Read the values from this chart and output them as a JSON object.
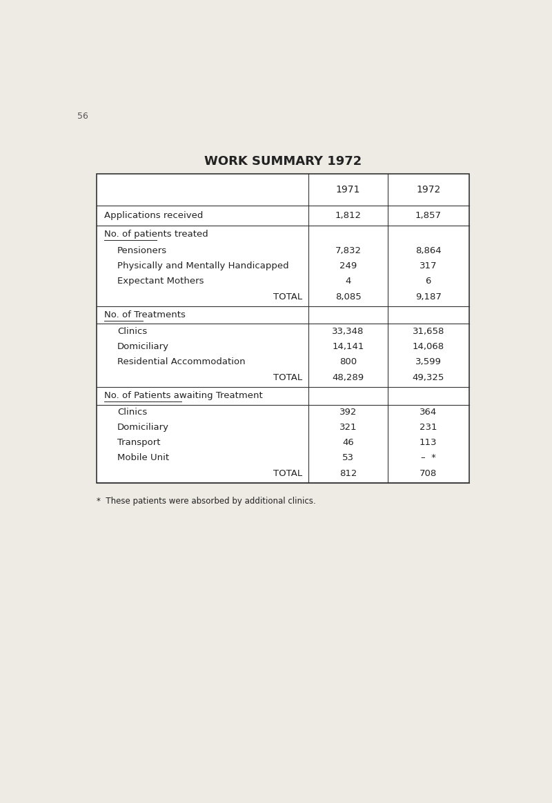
{
  "title": "WORK SUMMARY 1972",
  "col_header_1971": "1971",
  "col_header_1972": "1972",
  "sections": [
    {
      "type": "simple_row",
      "label": "Applications received",
      "val1971": "1,812",
      "val1972": "1,857"
    },
    {
      "type": "section_header",
      "label": "No. of patients treated",
      "val1971": "",
      "val1972": ""
    },
    {
      "type": "sub_row",
      "label": "Pensioners",
      "val1971": "7,832",
      "val1972": "8,864"
    },
    {
      "type": "sub_row",
      "label": "Physically and Mentally Handicapped",
      "val1971": "249",
      "val1972": "317"
    },
    {
      "type": "sub_row",
      "label": "Expectant Mothers",
      "val1971": "4",
      "val1972": "6"
    },
    {
      "type": "total_row",
      "label": "TOTAL",
      "val1971": "8,085",
      "val1972": "9,187"
    },
    {
      "type": "section_header",
      "label": "No. of Treatments",
      "val1971": "",
      "val1972": ""
    },
    {
      "type": "sub_row",
      "label": "Clinics",
      "val1971": "33,348",
      "val1972": "31,658"
    },
    {
      "type": "sub_row",
      "label": "Domiciliary",
      "val1971": "14,141",
      "val1972": "14,068"
    },
    {
      "type": "sub_row",
      "label": "Residential Accommodation",
      "val1971": "800",
      "val1972": "3,599"
    },
    {
      "type": "total_row",
      "label": "TOTAL",
      "val1971": "48,289",
      "val1972": "49,325"
    },
    {
      "type": "section_header",
      "label": "No. of Patients awaiting Treatment",
      "val1971": "",
      "val1972": ""
    },
    {
      "type": "sub_row",
      "label": "Clinics",
      "val1971": "392",
      "val1972": "364"
    },
    {
      "type": "sub_row",
      "label": "Domiciliary",
      "val1971": "321",
      "val1972": "231"
    },
    {
      "type": "sub_row",
      "label": "Transport",
      "val1971": "46",
      "val1972": "113"
    },
    {
      "type": "sub_row",
      "label": "Mobile Unit",
      "val1971": "53",
      "val1972": "–  *"
    },
    {
      "type": "total_row",
      "label": "TOTAL",
      "val1971": "812",
      "val1972": "708"
    }
  ],
  "footnote": "*  These patients were absorbed by additional clinics.",
  "bg_color": "#eeeae4",
  "table_bg": "#ffffff",
  "border_color": "#333333",
  "text_color": "#222222",
  "title_fontsize": 13,
  "header_fontsize": 10,
  "row_fontsize": 9.5,
  "page_number": "56"
}
